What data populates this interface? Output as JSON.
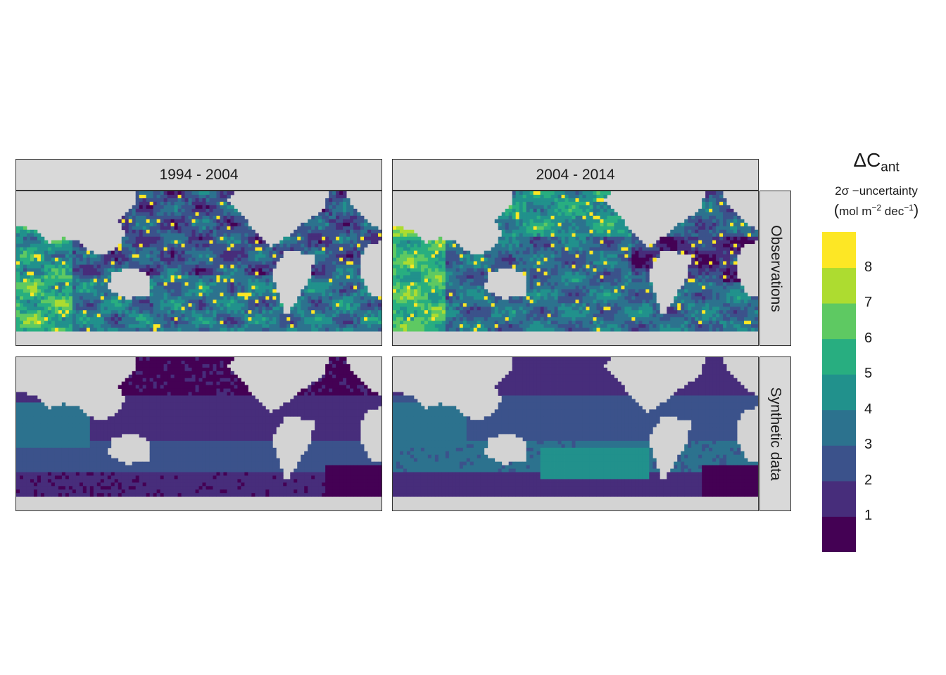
{
  "figure": {
    "facets_columns": [
      "1994 - 2004",
      "2004 - 2014"
    ],
    "facets_rows": [
      "Observations",
      "Synthetic data"
    ]
  },
  "legend": {
    "title_main": "ΔC",
    "title_sub": "ant",
    "line2": "2σ −uncertainty",
    "line3_open": "(",
    "line3_a": "mol m",
    "line3_exp1": "−2",
    "line3_b": " dec",
    "line3_exp2": "−1",
    "line3_close": ")",
    "ticks": [
      "1",
      "2",
      "3",
      "4",
      "5",
      "6",
      "7",
      "8"
    ],
    "colors": [
      "#440154",
      "#472d7b",
      "#3b528b",
      "#2c728e",
      "#21918c",
      "#28ae80",
      "#5ec962",
      "#addc30",
      "#fde725"
    ]
  },
  "colors": {
    "land": "#d3d3d3",
    "panel_border": "#333333",
    "strip_bg": "#d9d9d9"
  },
  "chart_data": {
    "type": "heatmap",
    "description_variable": "ΔCant 2σ-uncertainty (mol m−2 dec−1), binned color scale",
    "color_bins": [
      [
        0,
        1
      ],
      [
        1,
        2
      ],
      [
        2,
        3
      ],
      [
        3,
        4
      ],
      [
        4,
        5
      ],
      [
        5,
        6
      ],
      [
        6,
        7
      ],
      [
        7,
        8
      ],
      [
        8,
        9
      ]
    ],
    "panels": [
      {
        "row": "Observations",
        "column": "1994 - 2004",
        "dominant_range": [
          2,
          4
        ],
        "hotspots": [
          8,
          9
        ]
      },
      {
        "row": "Observations",
        "column": "2004 - 2014",
        "dominant_range": [
          1,
          5
        ],
        "hotspots": [
          8,
          9
        ]
      },
      {
        "row": "Synthetic data",
        "column": "1994 - 2004",
        "dominant_range": [
          0,
          3
        ],
        "hotspots": [
          4,
          5
        ]
      },
      {
        "row": "Synthetic data",
        "column": "2004 - 2014",
        "dominant_range": [
          0,
          4
        ],
        "hotspots": [
          5,
          6
        ]
      }
    ]
  }
}
